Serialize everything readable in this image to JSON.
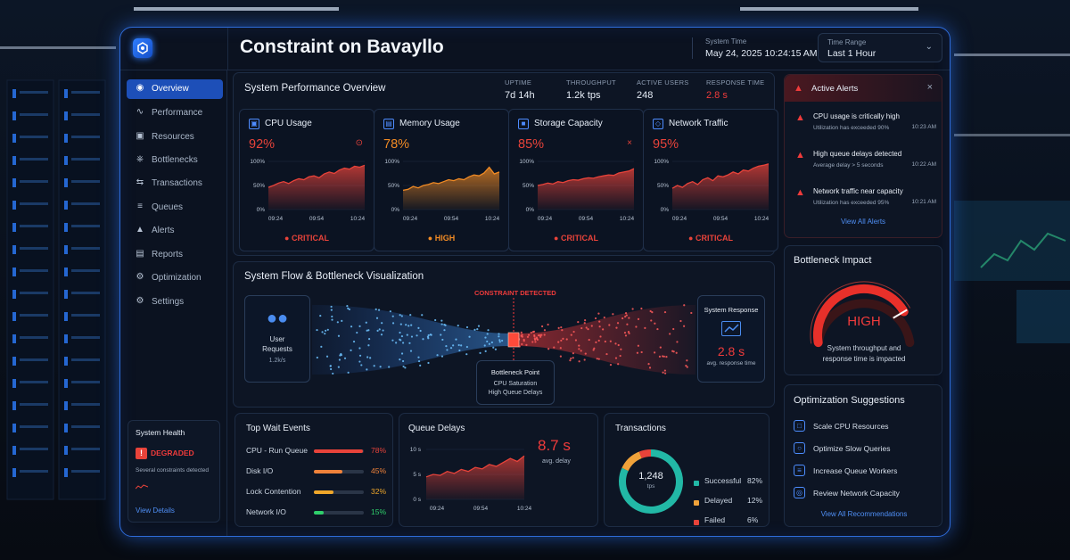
{
  "app": {
    "title": "Constraint on Bavayllo"
  },
  "header": {
    "system_time_label": "System Time",
    "system_time_value": "May 24, 2025 10:24:15 AM",
    "time_range_label": "Time Range",
    "time_range_value": "Last 1 Hour"
  },
  "sidebar": {
    "items": [
      {
        "label": "Overview",
        "icon": "overview-icon"
      },
      {
        "label": "Performance",
        "icon": "performance-icon"
      },
      {
        "label": "Resources",
        "icon": "resources-icon"
      },
      {
        "label": "Bottlenecks",
        "icon": "bottleneck-icon"
      },
      {
        "label": "Transactions",
        "icon": "transactions-icon"
      },
      {
        "label": "Queues",
        "icon": "queues-icon"
      },
      {
        "label": "Alerts",
        "icon": "bell-icon"
      },
      {
        "label": "Reports",
        "icon": "reports-icon"
      },
      {
        "label": "Optimization",
        "icon": "optimization-icon"
      },
      {
        "label": "Settings",
        "icon": "gear-icon"
      }
    ],
    "health": {
      "title": "System Health",
      "status": "DEGRADED",
      "note": "Several constraints detected",
      "link": "View Details"
    }
  },
  "overview": {
    "title": "System Performance Overview",
    "kpis": [
      {
        "label": "UPTIME",
        "value": "7d 14h"
      },
      {
        "label": "THROUGHPUT",
        "value": "1.2k tps"
      },
      {
        "label": "ACTIVE USERS",
        "value": "248"
      },
      {
        "label": "RESPONSE TIME",
        "value": "2.8 s"
      }
    ]
  },
  "metrics": [
    {
      "title": "CPU Usage",
      "percent": "92%",
      "status": "CRITICAL",
      "color": "#e8433a",
      "x_ticks": [
        "09:24",
        "09:54",
        "10:24"
      ],
      "y_ticks": [
        "100%",
        "50%",
        "0%"
      ],
      "series": [
        46,
        50,
        55,
        58,
        54,
        60,
        64,
        62,
        68,
        70,
        66,
        74,
        78,
        75,
        82,
        86,
        84,
        90,
        88,
        92
      ]
    },
    {
      "title": "Memory Usage",
      "percent": "78%",
      "status": "HIGH",
      "color": "#f08a24",
      "x_ticks": [
        "09:24",
        "09:54",
        "10:24"
      ],
      "y_ticks": [
        "100%",
        "50%",
        "0%"
      ],
      "series": [
        40,
        42,
        48,
        45,
        50,
        52,
        56,
        54,
        58,
        62,
        60,
        64,
        62,
        68,
        72,
        70,
        76,
        88,
        74,
        78
      ]
    },
    {
      "title": "Storage Capacity",
      "percent": "85%",
      "status": "CRITICAL",
      "color": "#e8433a",
      "x_ticks": [
        "09:24",
        "09:54",
        "10:24"
      ],
      "y_ticks": [
        "100%",
        "50%",
        "0%"
      ],
      "series": [
        50,
        52,
        55,
        53,
        58,
        56,
        60,
        62,
        61,
        64,
        66,
        65,
        68,
        70,
        72,
        71,
        76,
        78,
        80,
        85
      ]
    },
    {
      "title": "Network Traffic",
      "percent": "95%",
      "status": "CRITICAL",
      "color": "#e8433a",
      "x_ticks": [
        "09:24",
        "09:54",
        "10:24"
      ],
      "y_ticks": [
        "100%",
        "50%",
        "0%"
      ],
      "series": [
        44,
        50,
        46,
        54,
        58,
        52,
        62,
        66,
        60,
        70,
        68,
        72,
        78,
        74,
        82,
        80,
        86,
        90,
        92,
        95
      ]
    }
  ],
  "flow": {
    "title": "System Flow & Bottleneck Visualization",
    "constraint_label": "CONSTRAINT DETECTED",
    "user_requests_label": "User Requests",
    "user_requests_value": "1.2k/s",
    "bottleneck_title": "Bottleneck Point",
    "bottleneck_line1": "CPU Saturation",
    "bottleneck_line2": "High Queue Delays",
    "response_title": "System Response",
    "response_value": "2.8 s",
    "response_sub": "avg. response time"
  },
  "wait_events": {
    "title": "Top Wait Events",
    "items": [
      {
        "name": "CPU - Run Queue",
        "percent": "78%",
        "value": 0.78,
        "color": "#e8433a"
      },
      {
        "name": "Disk I/O",
        "percent": "45%",
        "value": 0.45,
        "color": "#f0823a"
      },
      {
        "name": "Lock Contention",
        "percent": "32%",
        "value": 0.32,
        "color": "#f0a72a"
      },
      {
        "name": "Network I/O",
        "percent": "15%",
        "value": 0.15,
        "color": "#2fcf6b"
      }
    ]
  },
  "queue_delays": {
    "title": "Queue Delays",
    "value": "8.7 s",
    "sub": "avg. delay",
    "y_ticks": [
      "10 s",
      "5 s",
      "0 s"
    ],
    "x_ticks": [
      "09:24",
      "09:54",
      "10:24"
    ],
    "series": [
      4.5,
      5.0,
      4.8,
      5.6,
      5.2,
      6.0,
      5.6,
      6.4,
      6.1,
      7.0,
      6.6,
      7.4,
      8.2,
      7.6,
      8.7
    ]
  },
  "transactions": {
    "title": "Transactions",
    "total": "1,248",
    "unit": "tps",
    "items": [
      {
        "label": "Successful",
        "percent": "82%",
        "value": 82,
        "color": "#22b8a6"
      },
      {
        "label": "Delayed",
        "percent": "12%",
        "value": 12,
        "color": "#f0a23a"
      },
      {
        "label": "Failed",
        "percent": "6%",
        "value": 6,
        "color": "#e8433a"
      }
    ]
  },
  "alerts": {
    "title": "Active Alerts",
    "items": [
      {
        "title": "CPU usage is critically high",
        "sub": "Utilization has exceeded 90%",
        "time": "10:23 AM"
      },
      {
        "title": "High queue delays detected",
        "sub": "Average delay > 5 seconds",
        "time": "10:22 AM"
      },
      {
        "title": "Network traffic near capacity",
        "sub": "Utilization has exceeded 95%",
        "time": "10:21 AM"
      }
    ],
    "link": "View All Alerts"
  },
  "impact": {
    "title": "Bottleneck Impact",
    "level": "HIGH",
    "level_value": 0.8,
    "text1": "System throughput and",
    "text2": "response time is impacted"
  },
  "suggestions": {
    "title": "Optimization Suggestions",
    "items": [
      "Scale CPU Resources",
      "Optimize Slow Queries",
      "Increase Queue Workers",
      "Review Network Capacity"
    ],
    "link": "View All Recommendations"
  }
}
